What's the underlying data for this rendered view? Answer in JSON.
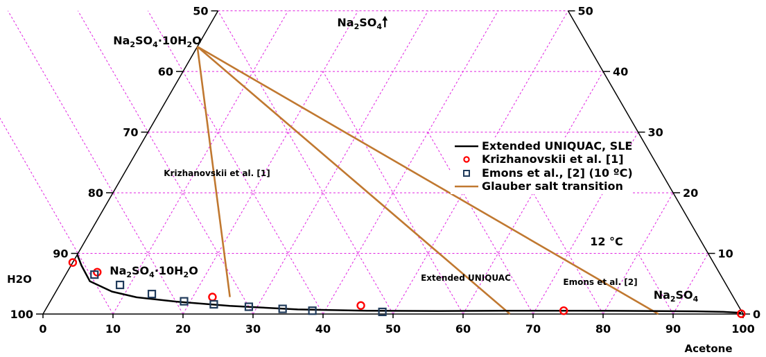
{
  "chart_data": {
    "type": "scatter",
    "subtype": "ternary-partial",
    "temperature_label": "12 °C",
    "axes": {
      "bottom": {
        "name": "Acetone",
        "ticks": [
          "0",
          "10",
          "20",
          "30",
          "40",
          "50",
          "60",
          "70",
          "80",
          "90",
          "100"
        ]
      },
      "left": {
        "name": "H2O",
        "ticks": [
          "100",
          "90",
          "80",
          "70",
          "60",
          "50"
        ]
      },
      "right": {
        "ticks": [
          "0",
          "10",
          "20",
          "30",
          "40",
          "50"
        ]
      },
      "range_na2so4": [
        0,
        50
      ]
    },
    "corner_labels": {
      "top_arrow": "Na₂SO₄🠕",
      "glauber_salt": "Na₂SO₄·10H₂O",
      "region_left": "Na₂SO₄·10H₂O",
      "region_right": "Na₂SO₄"
    },
    "region_labels": {
      "krizhanovskii": "Krizhanovskii  et al. [1]",
      "uniquac": "Extended UNIQUAC",
      "emons": "Emons et al. [2]"
    },
    "legend": {
      "items": [
        {
          "label": "Extended UNIQUAC, SLE",
          "marker": "line",
          "color": "#000000"
        },
        {
          "label": "Krizhanovskii et al. [1]",
          "marker": "circle",
          "color": "#ff0000"
        },
        {
          "label": "Emons et al., [2] (10 ºC)",
          "marker": "square",
          "color": "#1f3a5a"
        },
        {
          "label": "Glauber salt transition",
          "marker": "line",
          "color": "#c07830"
        }
      ]
    },
    "series": [
      {
        "name": "Extended UNIQUAC, SLE",
        "color": "#000000",
        "points": [
          [
            0,
            9.8
          ],
          [
            1.5,
            8
          ],
          [
            4,
            5.4
          ],
          [
            8,
            3.7
          ],
          [
            12,
            2.75
          ],
          [
            18,
            2.05
          ],
          [
            26,
            1.35
          ],
          [
            36,
            0.75
          ],
          [
            46,
            0.55
          ],
          [
            56,
            0.5
          ],
          [
            66,
            0.55
          ],
          [
            76,
            0.55
          ],
          [
            86,
            0.5
          ],
          [
            93,
            0.45
          ],
          [
            97,
            0.35
          ],
          [
            99.6,
            0.2
          ]
        ]
      },
      {
        "name": "Krizhanovskii et al. [1]",
        "color": "#ff0000",
        "points": [
          [
            0,
            8.5
          ],
          [
            4.3,
            6.9
          ],
          [
            22.8,
            2.8
          ],
          [
            44.7,
            1.4
          ],
          [
            74.1,
            0.55
          ],
          [
            99.7,
            0.05
          ]
        ]
      },
      {
        "name": "Emons et al., [2] (10 ºC)",
        "color": "#1f3a5a",
        "points": [
          [
            4.1,
            6.5
          ],
          [
            8.6,
            4.8
          ],
          [
            13.9,
            3.3
          ],
          [
            19.1,
            2.1
          ],
          [
            23.6,
            1.6
          ],
          [
            28.8,
            1.2
          ],
          [
            33.8,
            0.85
          ],
          [
            38.2,
            0.55
          ],
          [
            48.3,
            0.35
          ]
        ]
      },
      {
        "name": "Glauber salt transition",
        "color": "#c07830",
        "segments": [
          [
            [
              0,
              44.1
            ],
            [
              25.3,
              2.8
            ]
          ],
          [
            [
              0,
              44.1
            ],
            [
              66.7,
              0
            ]
          ],
          [
            [
              0,
              44.1
            ],
            [
              87.9,
              0
            ]
          ]
        ]
      }
    ],
    "grid": true
  }
}
